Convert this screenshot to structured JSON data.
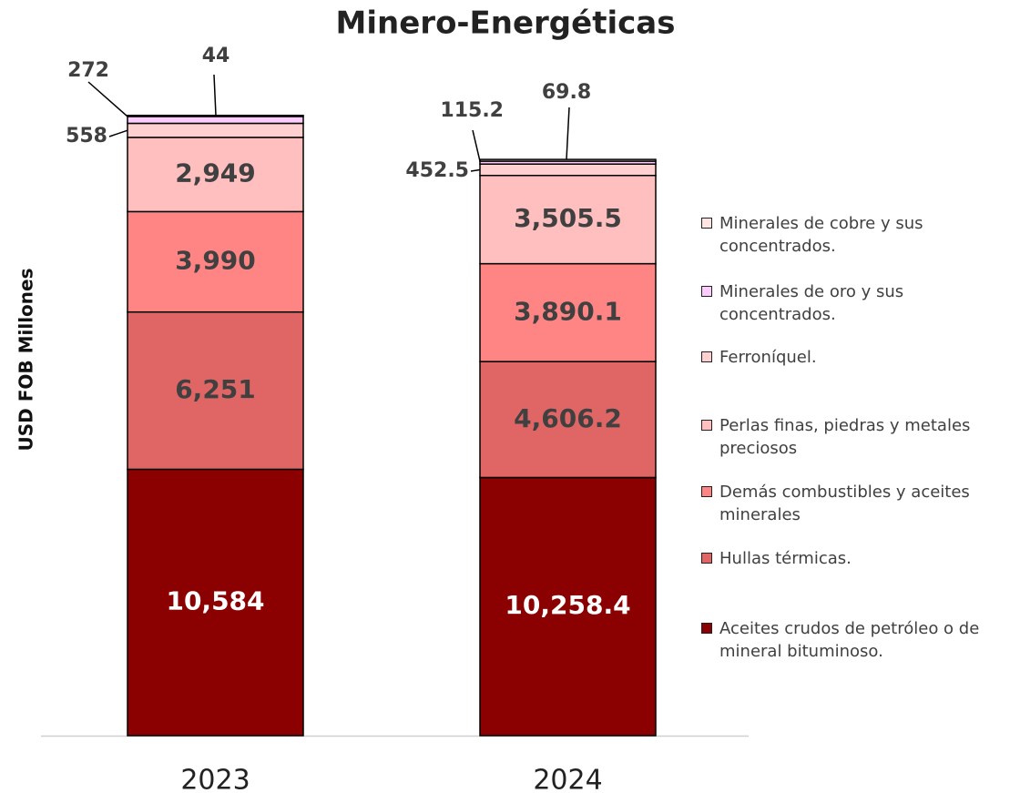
{
  "chart_data": {
    "type": "stacked-bar",
    "title": "Minero-Energéticas",
    "ylabel": "USD FOB Millones",
    "categories": [
      "2023",
      "2024"
    ],
    "ylim": [
      0,
      25000
    ],
    "series": [
      {
        "name": "Aceites crudos de petróleo o de mineral bituminoso.",
        "color": "#8b0000",
        "values": [
          10584,
          10258.4
        ],
        "value_labels": [
          "10,584",
          "10,258.4"
        ]
      },
      {
        "name": "Hullas térmicas.",
        "color": "#e06666",
        "values": [
          6251,
          4606.2
        ],
        "value_labels": [
          "6,251",
          "4,606.2"
        ]
      },
      {
        "name": "Demás combustibles y aceites minerales",
        "color": "#ff8585",
        "values": [
          3990,
          3890.1
        ],
        "value_labels": [
          "3,990",
          "3,890.1"
        ]
      },
      {
        "name": "Perlas finas, piedras y metales preciosos",
        "color": "#ffbfbf",
        "values": [
          2949,
          3505.5
        ],
        "value_labels": [
          "2,949",
          "3,505.5"
        ]
      },
      {
        "name": "Ferroníquel.",
        "color": "#ffd0d0",
        "values": [
          558,
          452.5
        ],
        "value_labels": [
          "558",
          "452.5"
        ]
      },
      {
        "name": "Minerales de oro y sus concentrados.",
        "color": "#ffccff",
        "values": [
          272,
          115.2
        ],
        "value_labels": [
          "272",
          "115.2"
        ]
      },
      {
        "name": "Minerales de cobre y sus concentrados.",
        "color": "#ffe4e4",
        "values": [
          44,
          69.8
        ],
        "value_labels": [
          "44",
          "69.8"
        ]
      }
    ]
  }
}
